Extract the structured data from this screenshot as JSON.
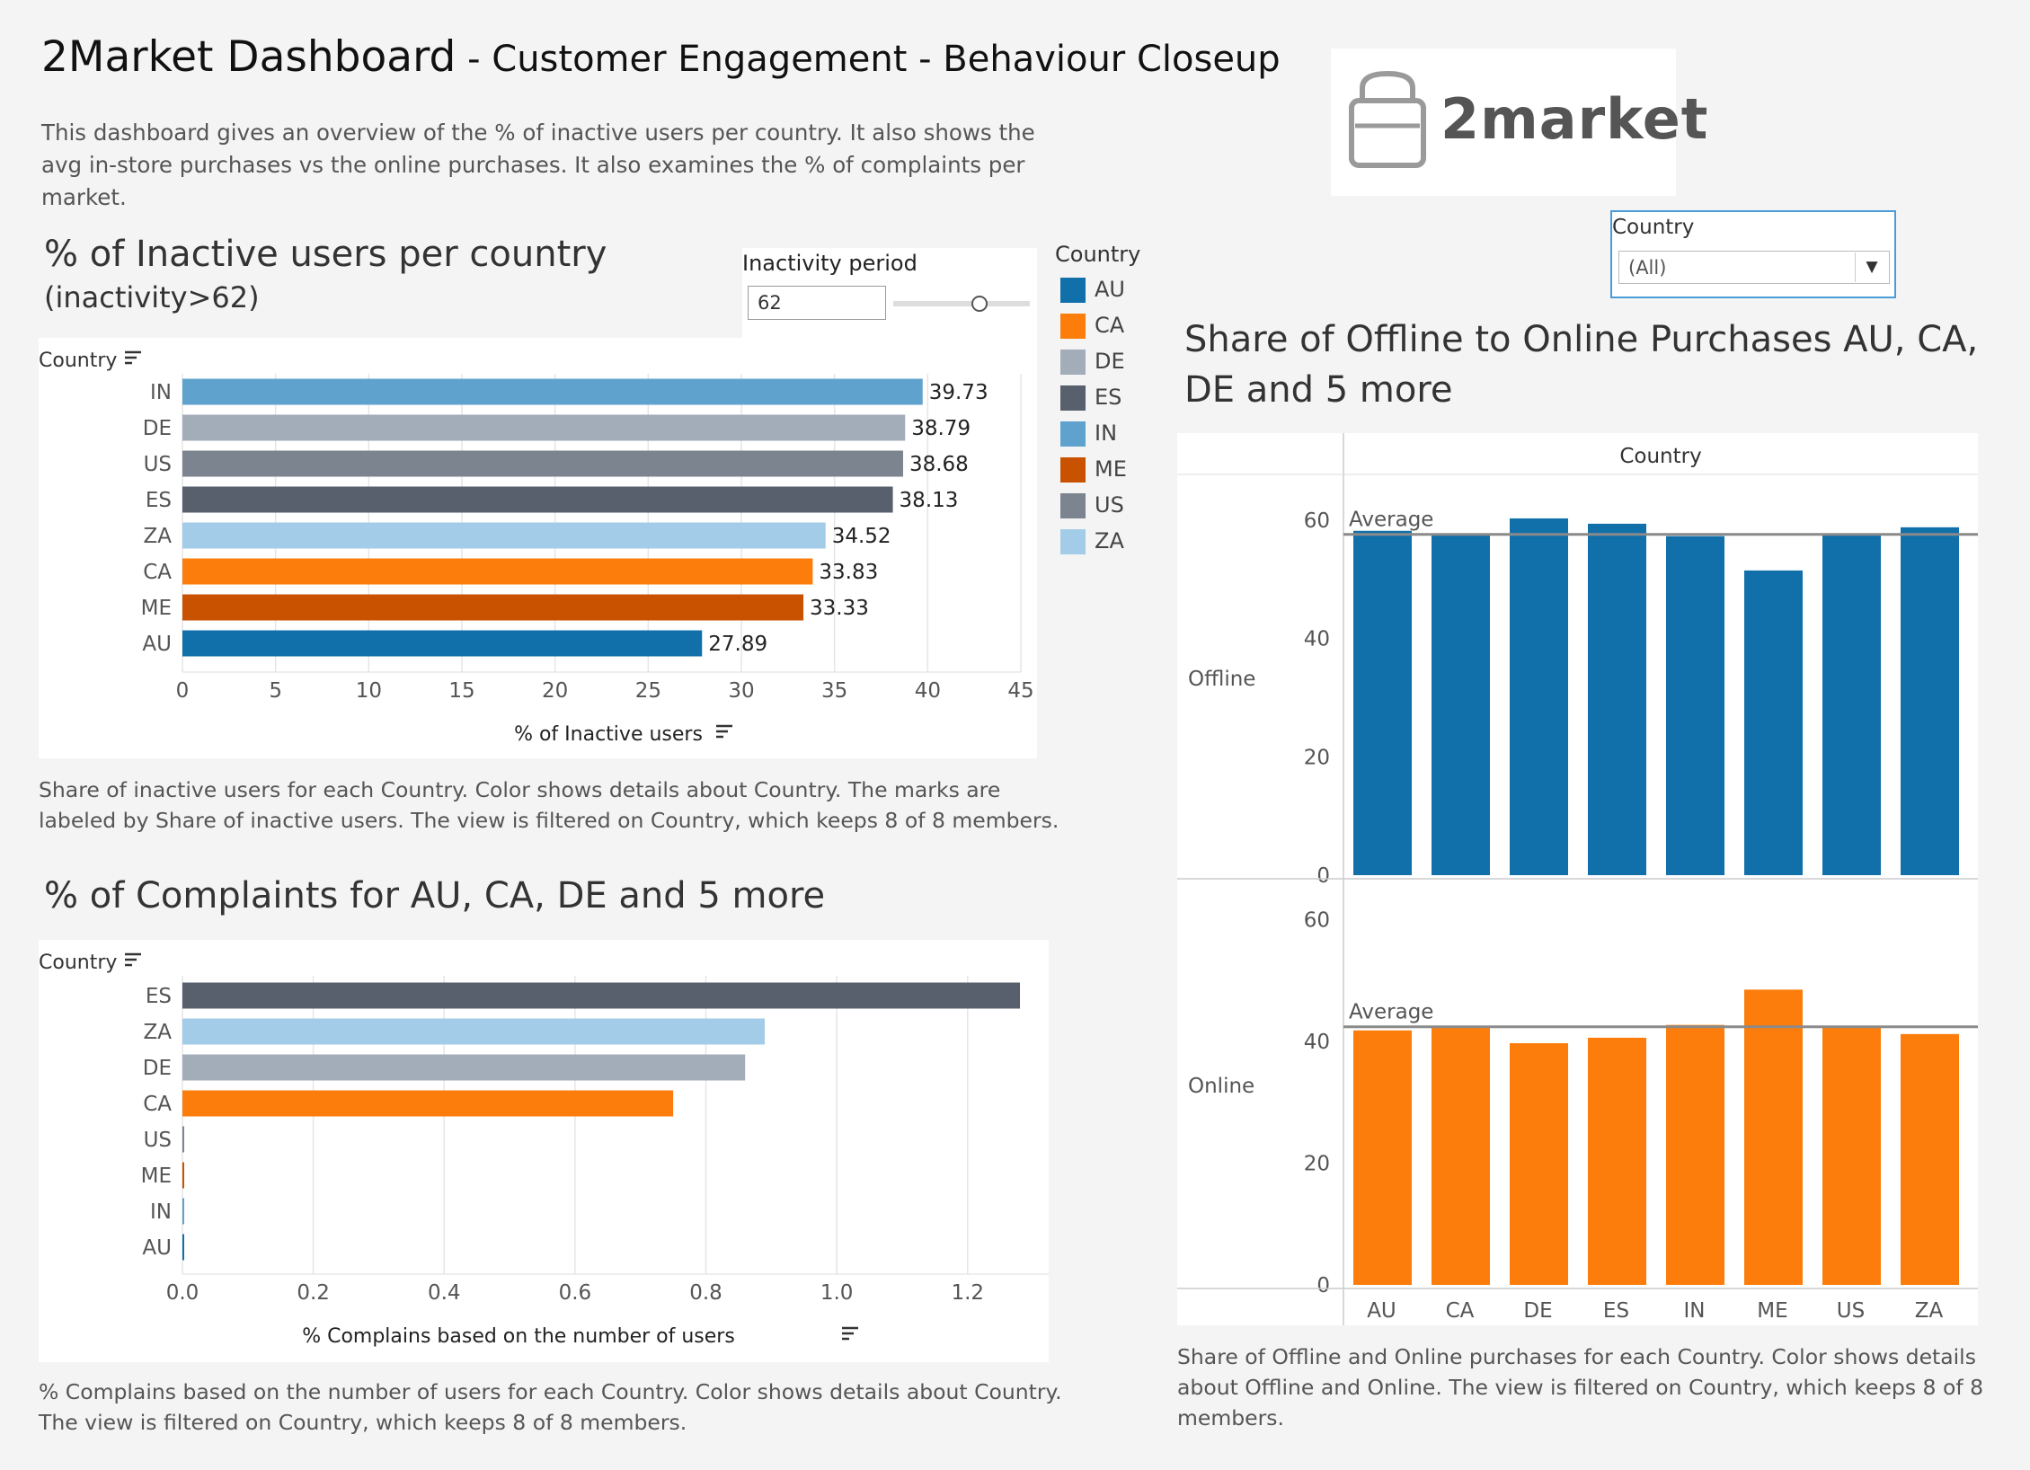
{
  "header": {
    "title": "2Market Dashboard",
    "subtitle": " - Customer Engagement - Behaviour Closeup",
    "description": "This dashboard gives an overview of the % of inactive users per country. It also shows the avg in-store purchases vs the online purchases. It also examines the % of complaints per market."
  },
  "logo": {
    "text": "2market",
    "icon": "shopping-bag-icon"
  },
  "country_filter": {
    "label": "Country",
    "value": "(All)"
  },
  "inactivity_filter": {
    "label": "Inactivity period",
    "value": "62"
  },
  "legend": {
    "title": "Country",
    "items": [
      {
        "label": "AU",
        "color": "#1170aa"
      },
      {
        "label": "CA",
        "color": "#fc7d0b"
      },
      {
        "label": "DE",
        "color": "#a3acb9"
      },
      {
        "label": "ES",
        "color": "#57606c"
      },
      {
        "label": "IN",
        "color": "#5fa2ce"
      },
      {
        "label": "ME",
        "color": "#c85200"
      },
      {
        "label": "US",
        "color": "#7b848f"
      },
      {
        "label": "ZA",
        "color": "#a3cce9"
      }
    ]
  },
  "inactive_section": {
    "title": "% of Inactive users per country",
    "subtitle": "(inactivity>62)",
    "caption": "Share of inactive users for each Country.  Color shows details about Country.  The marks are labeled by Share of inactive users. The view is filtered on Country, which keeps 8 of 8 members."
  },
  "complaints_section": {
    "title": "% of Complaints for AU, CA, DE and 5 more",
    "caption": "% Complains based on the number of users for each Country.  Color shows details about Country. The view is filtered on Country, which keeps 8 of 8 members."
  },
  "purchases_section": {
    "title_line1": "Share of Offline to Online Purchases AU, CA,",
    "title_line2": "DE and 5 more",
    "caption": "Share of Offline and Online purchases for each Country.  Color shows details about Offline and Online. The view is filtered on Country, which keeps 8 of 8 members."
  },
  "chart_data": [
    {
      "type": "bar",
      "orientation": "horizontal",
      "categories": [
        "IN",
        "DE",
        "US",
        "ES",
        "ZA",
        "CA",
        "ME",
        "AU"
      ],
      "values": [
        39.73,
        38.79,
        38.68,
        38.13,
        34.52,
        33.83,
        33.33,
        27.89
      ],
      "colors": [
        "#5fa2ce",
        "#a3acb9",
        "#7b848f",
        "#57606c",
        "#a3cce9",
        "#fc7d0b",
        "#c85200",
        "#1170aa"
      ],
      "xlabel": "% of Inactive users",
      "ylabel": "Country",
      "xlim": [
        0,
        45
      ],
      "xticks": [
        "0",
        "5",
        "10",
        "15",
        "20",
        "25",
        "30",
        "35",
        "40",
        "45"
      ],
      "data_labels": true
    },
    {
      "type": "bar",
      "orientation": "horizontal",
      "categories": [
        "ES",
        "ZA",
        "DE",
        "CA",
        "US",
        "ME",
        "IN",
        "AU"
      ],
      "values": [
        1.28,
        0.89,
        0.86,
        0.75,
        0.0,
        0.0,
        0.0,
        0.0
      ],
      "colors": [
        "#57606c",
        "#a3cce9",
        "#a3acb9",
        "#fc7d0b",
        "#7b848f",
        "#c85200",
        "#5fa2ce",
        "#1170aa"
      ],
      "xlabel": "% Complains based on the number of users",
      "ylabel": "Country",
      "xlim": [
        0,
        1.35
      ],
      "xticks": [
        "0.0",
        "0.2",
        "0.4",
        "0.6",
        "0.8",
        "1.0",
        "1.2"
      ],
      "grid": true
    },
    {
      "type": "bar",
      "categories": [
        "AU",
        "CA",
        "DE",
        "ES",
        "IN",
        "ME",
        "US",
        "ZA"
      ],
      "header": "Country",
      "rows": [
        {
          "name": "Offline",
          "color": "#1170aa",
          "values": [
            58.2,
            57.6,
            60.3,
            59.4,
            57.3,
            51.5,
            57.7,
            58.8
          ],
          "average": 57.6,
          "average_label": "Average",
          "ylim": [
            0,
            65
          ],
          "yticks": [
            "0",
            "20",
            "40",
            "60"
          ]
        },
        {
          "name": "Online",
          "color": "#fc7d0b",
          "values": [
            41.8,
            42.4,
            39.7,
            40.6,
            42.7,
            48.5,
            42.3,
            41.2
          ],
          "average": 42.4,
          "average_label": "Average",
          "ylim": [
            0,
            58
          ],
          "yticks": [
            "0",
            "20",
            "40",
            "60"
          ]
        }
      ]
    }
  ]
}
